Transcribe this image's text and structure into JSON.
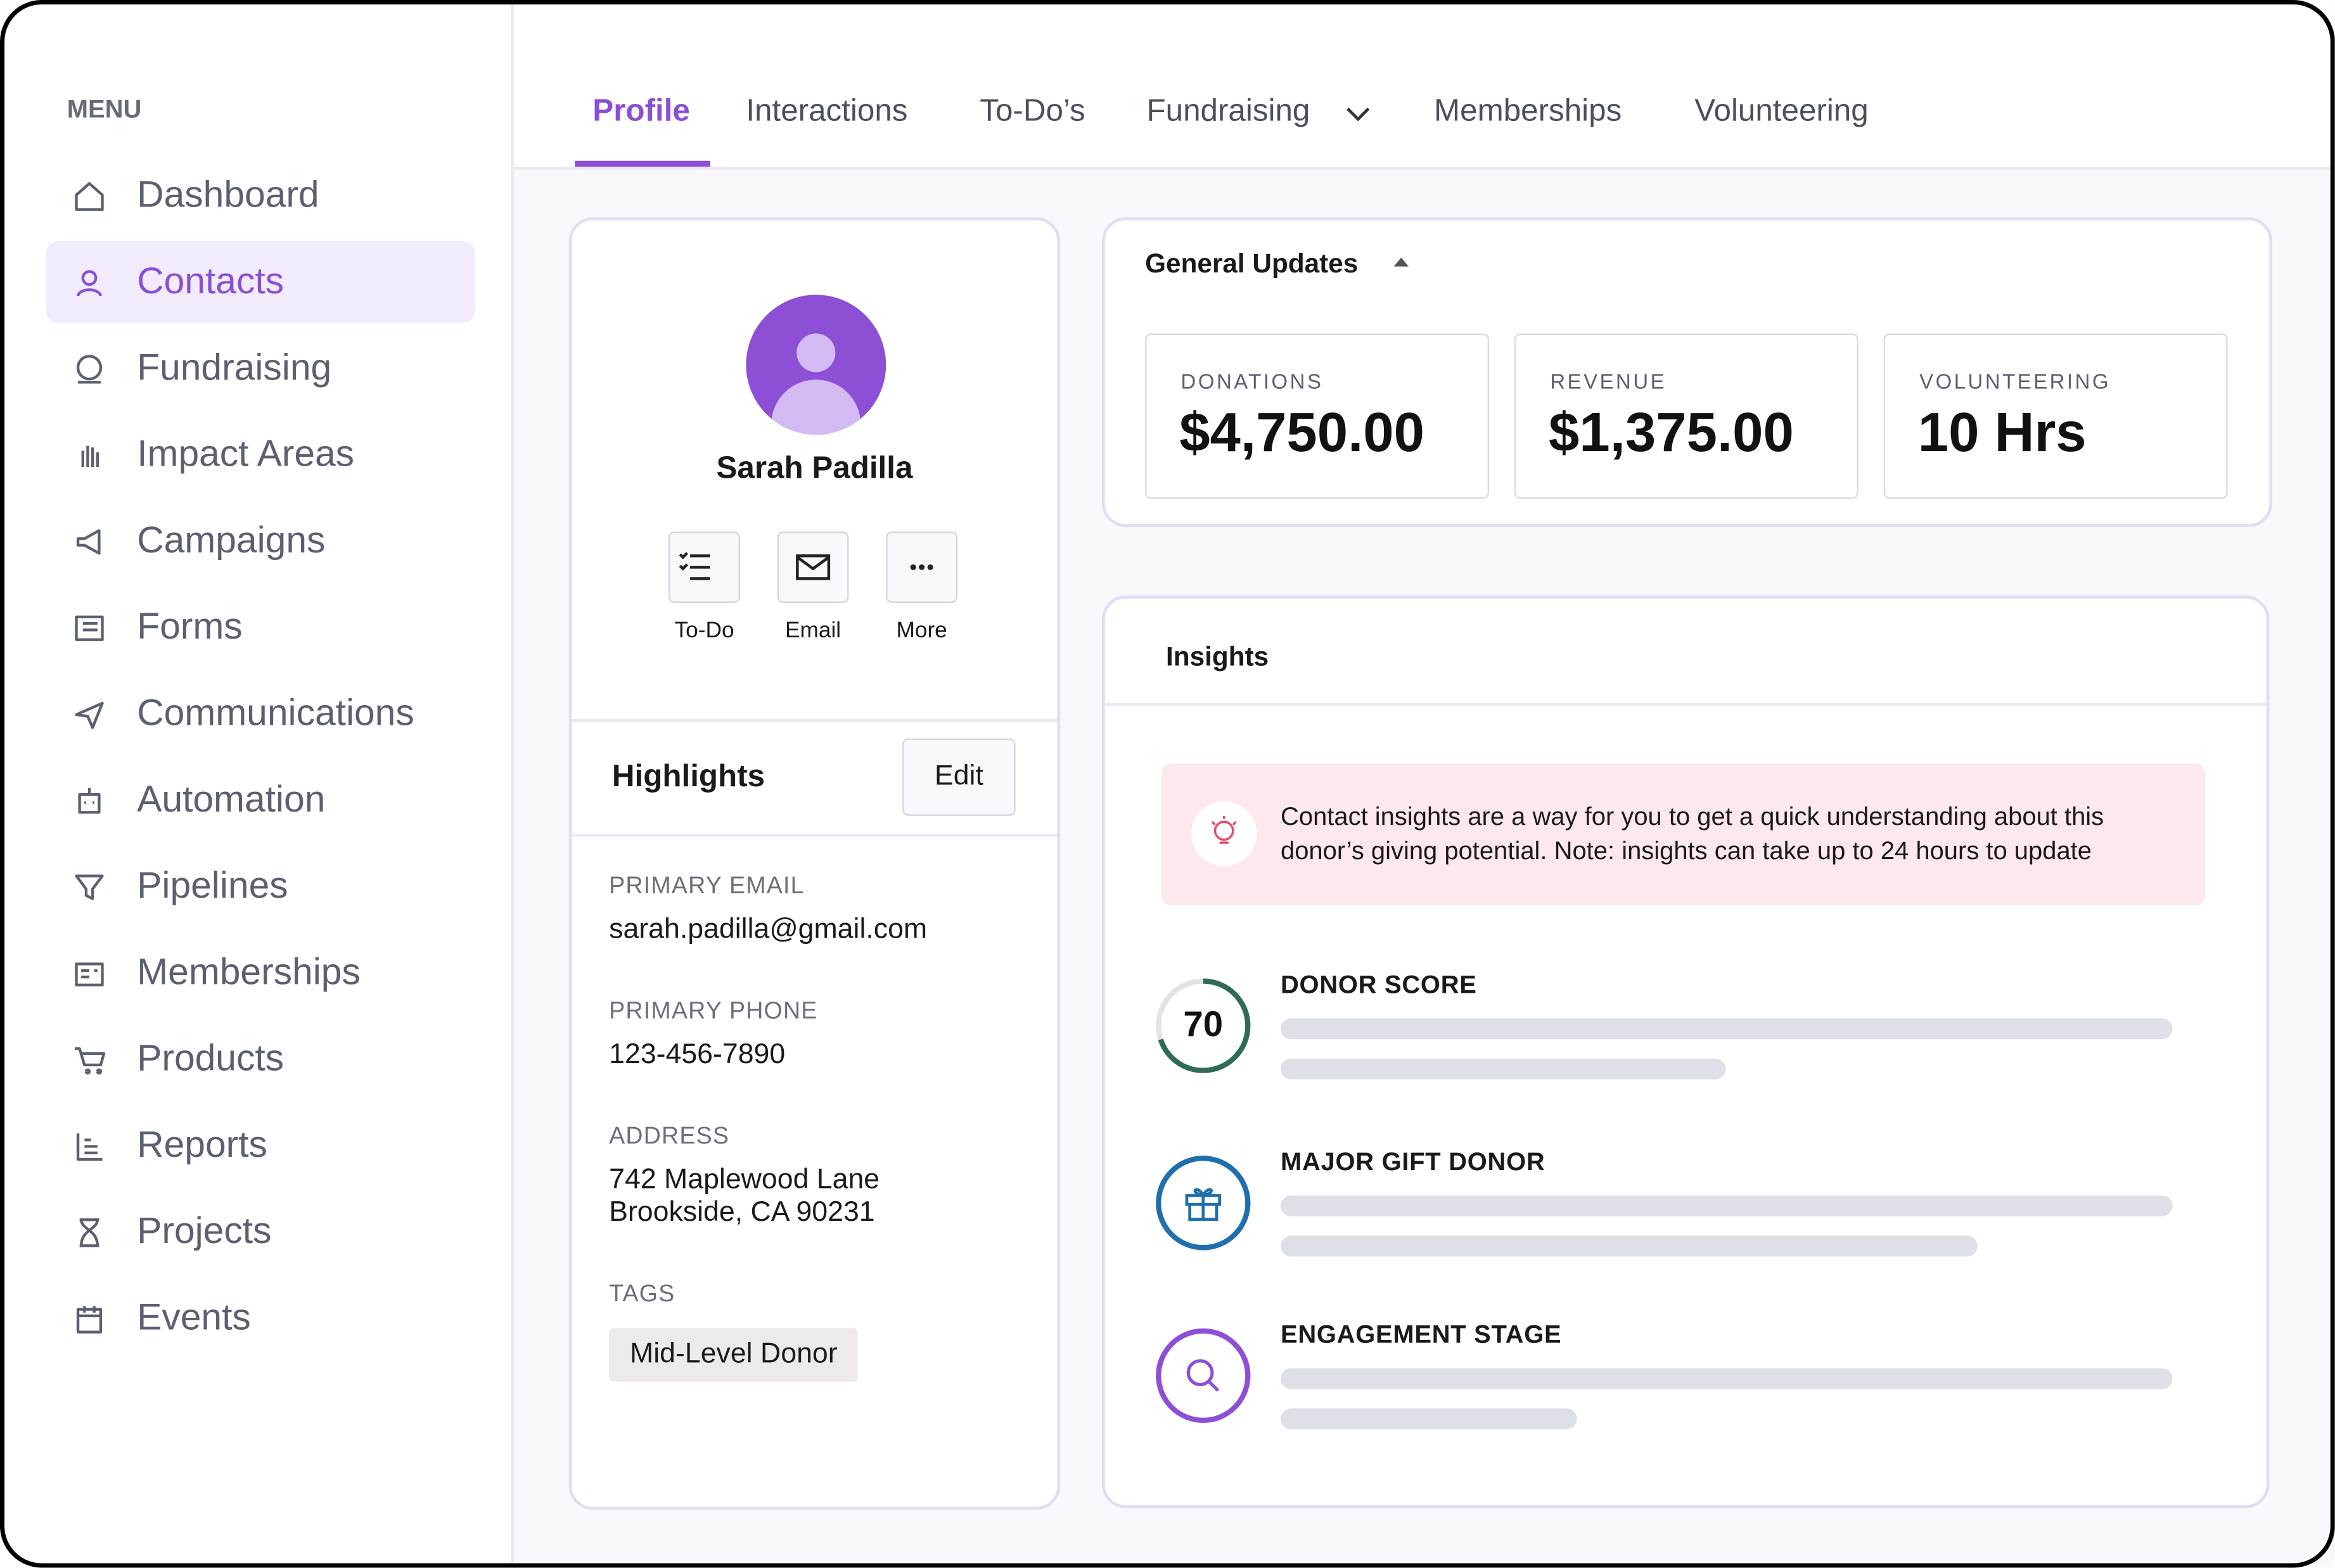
{
  "menu": {
    "title": "MENU",
    "items": [
      "Dashboard",
      "Contacts",
      "Fundraising",
      "Impact Areas",
      "Campaigns",
      "Forms",
      "Communications",
      "Automation",
      "Pipelines",
      "Memberships",
      "Products",
      "Reports",
      "Projects",
      "Events"
    ]
  },
  "tabs": [
    "Profile",
    "Interactions",
    "To-Do’s",
    "Fundraising",
    "Memberships",
    "Volunteering"
  ],
  "profile": {
    "name": "Sarah Padilla",
    "actions": [
      "To-Do",
      "Email",
      "More"
    ],
    "highlights": {
      "title": "Highlights",
      "edit": "Edit",
      "fields": [
        {
          "label": "PRIMARY EMAIL",
          "lines": [
            "sarah.padilla@gmail.com"
          ]
        },
        {
          "label": "PRIMARY PHONE",
          "lines": [
            "123-456-7890"
          ]
        },
        {
          "label": "ADDRESS",
          "lines": [
            "742 Maplewood Lane",
            "Brookside, CA 90231"
          ]
        }
      ],
      "tags_label": "TAGS",
      "tags": [
        "Mid-Level Donor"
      ]
    }
  },
  "general_updates": {
    "title": "General Updates",
    "stats": [
      {
        "label": "DONATIONS",
        "value": "$4,750.00"
      },
      {
        "label": "REVENUE",
        "value": "$1,375.00"
      },
      {
        "label": "VOLUNTEERING",
        "value": "10 Hrs"
      }
    ]
  },
  "insights": {
    "title": "Insights",
    "note": "Contact insights are a way for you to get a quick understanding about this donor’s giving potential. Note: insights can take up to 24 hours to update",
    "items": [
      {
        "label": "DONOR SCORE",
        "score": 70
      },
      {
        "label": "MAJOR GIFT DONOR"
      },
      {
        "label": "ENGAGEMENT STAGE"
      }
    ]
  }
}
